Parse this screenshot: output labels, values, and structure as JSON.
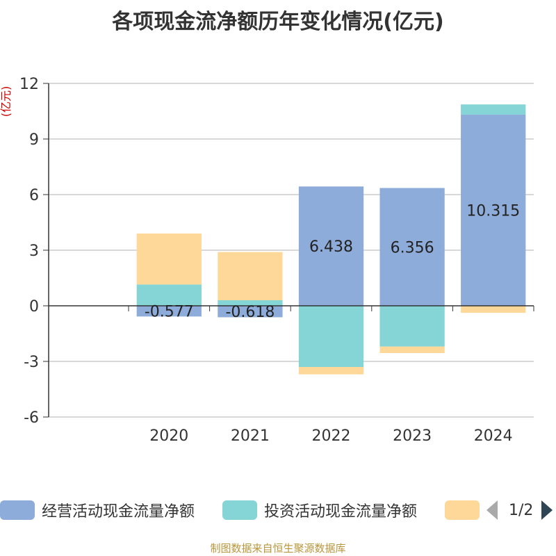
{
  "chart_data": {
    "type": "bar",
    "stacked": true,
    "title": "各项现金流净额历年变化情况(亿元)",
    "y_unit_label": "(亿元)",
    "categories": [
      "2020",
      "2021",
      "2022",
      "2023",
      "2024"
    ],
    "ylim": [
      -6,
      12
    ],
    "yticks": [
      -6,
      -3,
      0,
      3,
      6,
      9,
      12
    ],
    "grid": true,
    "series": [
      {
        "name": "经营活动现金流量净额",
        "color": "#8eacd9",
        "values": [
          -0.577,
          -0.618,
          6.438,
          6.356,
          10.315
        ],
        "show_labels": true
      },
      {
        "name": "投资活动现金流量净额",
        "color": "#85d4d6",
        "values": [
          1.15,
          0.3,
          -3.3,
          -2.2,
          0.55
        ],
        "show_labels": false
      },
      {
        "name": "",
        "color": "#fdd898",
        "values": [
          2.75,
          2.6,
          -0.4,
          -0.35,
          -0.38
        ],
        "show_labels": false
      }
    ],
    "legend_position": "bottom",
    "legend_pager": "1/2"
  },
  "footer": {
    "source": "制图数据来自恒生聚源数据库"
  },
  "colors": {
    "title": "#333333",
    "unit": "#cc0000",
    "grid": "#cccccc",
    "axis": "#333333",
    "footer": "#b8963c"
  }
}
